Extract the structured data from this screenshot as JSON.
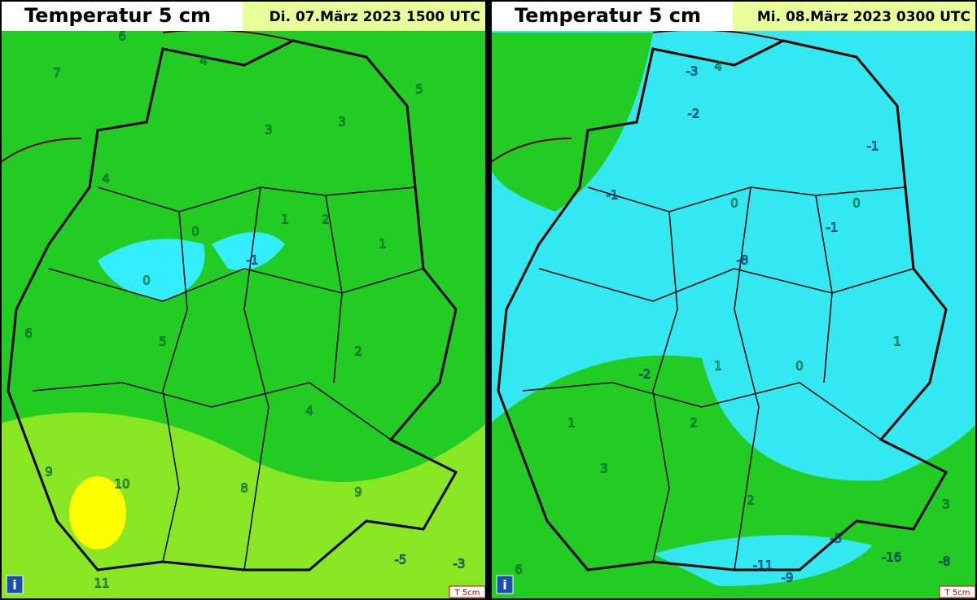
{
  "panels": [
    {
      "title": "Temperatur 5 cm",
      "date": "Di. 07.März 2023 1500 UTC",
      "footer": "T 5cm",
      "info": "i",
      "station_values": [
        6,
        7,
        4,
        5,
        3,
        2,
        1,
        0,
        -1,
        2,
        4,
        8,
        9,
        10,
        11,
        -5,
        -3,
        6,
        4,
        3,
        5,
        9,
        1,
        0
      ]
    },
    {
      "title": "Temperatur 5 cm",
      "date": "Mi. 08.März 2023 0300 UTC",
      "footer": "T 5cm",
      "info": "i",
      "station_values": [
        4,
        -3,
        -2,
        0,
        -1,
        -8,
        1,
        2,
        -16,
        -9,
        -11,
        -8,
        -5,
        3,
        6,
        -1,
        0,
        1,
        2,
        3,
        -2,
        0,
        1,
        -1
      ]
    }
  ]
}
